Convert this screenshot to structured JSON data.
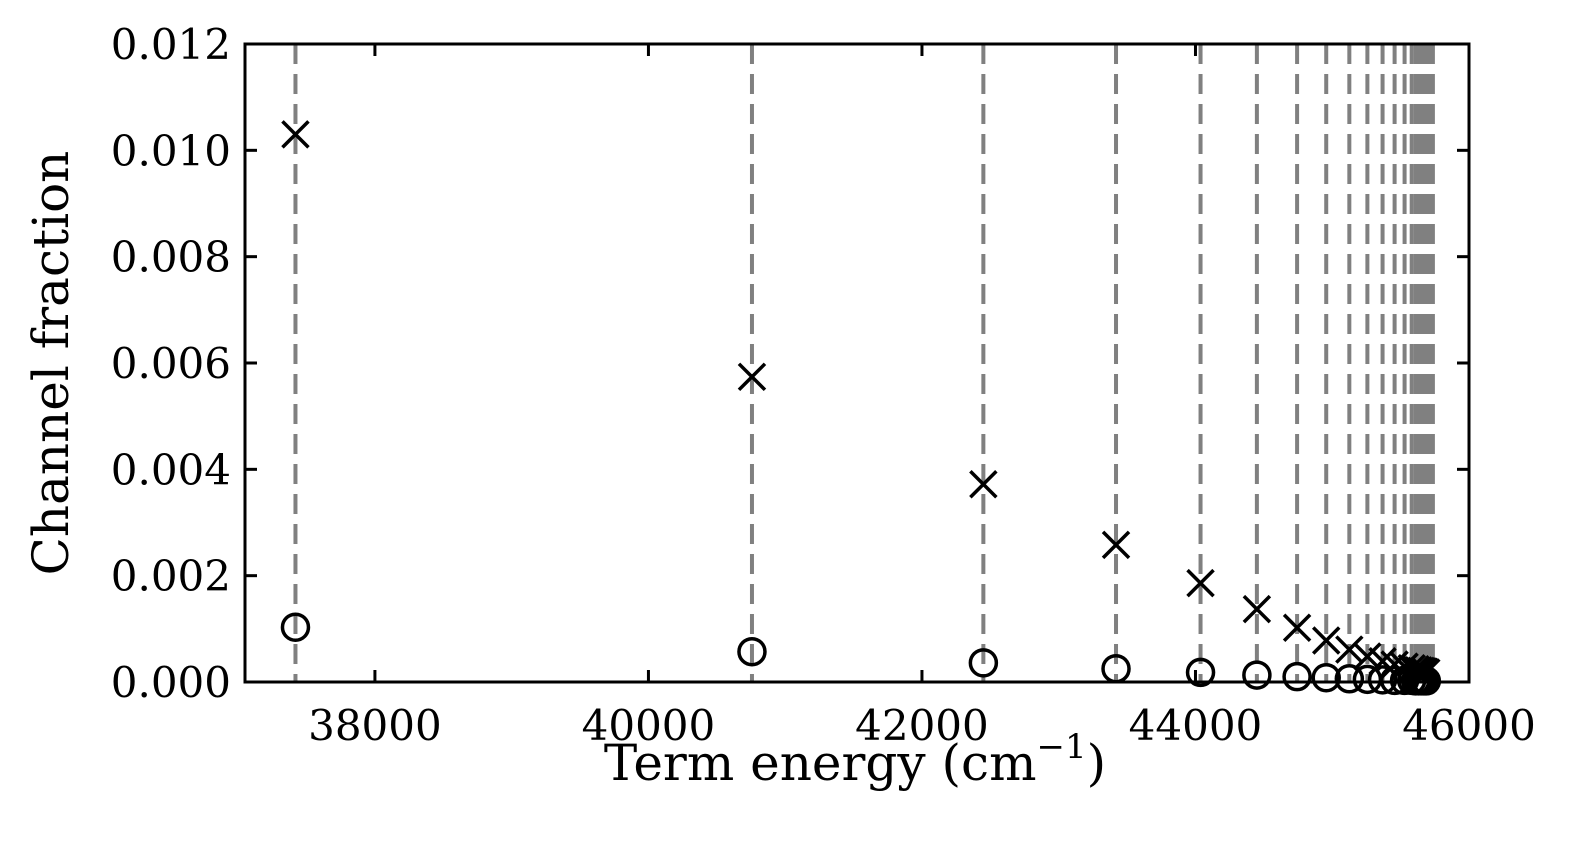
{
  "chart_data": {
    "type": "scatter",
    "title": "",
    "xlabel": "Term energy (cm⁻¹)",
    "xlabel_main": "Term energy (cm",
    "xlabel_sup": "−1",
    "xlabel_close": ")",
    "ylabel": "Channel fraction",
    "xlim": [
      37050,
      46000
    ],
    "ylim": [
      0.0,
      0.012
    ],
    "x_ticks": [
      38000,
      40000,
      42000,
      44000,
      46000
    ],
    "x_tick_labels": [
      "38000",
      "40000",
      "42000",
      "44000",
      "46000"
    ],
    "y_ticks": [
      0.0,
      0.002,
      0.004,
      0.006,
      0.008,
      0.01,
      0.012
    ],
    "y_tick_labels": [
      "0.000",
      "0.002",
      "0.004",
      "0.006",
      "0.008",
      "0.010",
      "0.012"
    ],
    "grid": false,
    "legend": null,
    "vertical_lines": {
      "style": "dashed",
      "color": "#808080",
      "x": [
        37419,
        40757,
        42449,
        43419,
        44037,
        44449,
        44743,
        44956,
        45125,
        45257,
        45368,
        45456,
        45529,
        45581,
        45610,
        45632,
        45650,
        45665,
        45677,
        45688,
        45697,
        45705,
        45712,
        45718,
        45723,
        45728,
        45732,
        45736
      ]
    },
    "series": [
      {
        "name": "cross markers",
        "marker": "x",
        "color": "#000000",
        "x": [
          37419,
          40757,
          42449,
          43419,
          44037,
          44449,
          44743,
          44956,
          45125,
          45257,
          45368,
          45456,
          45529,
          45581,
          45610,
          45632,
          45650,
          45665,
          45677,
          45688
        ],
        "y": [
          0.0103,
          0.00574,
          0.00372,
          0.00258,
          0.00186,
          0.00137,
          0.00102,
          0.00078,
          0.00061,
          0.00048,
          0.00039,
          0.00033,
          0.00029,
          0.00026,
          0.00024,
          0.00022,
          0.00021,
          0.0002,
          0.00019,
          0.00018
        ]
      },
      {
        "name": "circle markers",
        "marker": "o",
        "color": "#000000",
        "x": [
          37419,
          40757,
          42449,
          43419,
          44037,
          44449,
          44743,
          44956,
          45125,
          45257,
          45368,
          45456,
          45529,
          45581,
          45610,
          45632,
          45650,
          45665,
          45677,
          45688
        ],
        "y": [
          0.00103,
          0.00057,
          0.00036,
          0.00025,
          0.00018,
          0.00013,
          0.0001,
          8e-05,
          6e-05,
          5e-05,
          4e-05,
          3e-05,
          3e-05,
          3e-05,
          2e-05,
          2e-05,
          2e-05,
          2e-05,
          2e-05,
          2e-05
        ]
      }
    ]
  }
}
